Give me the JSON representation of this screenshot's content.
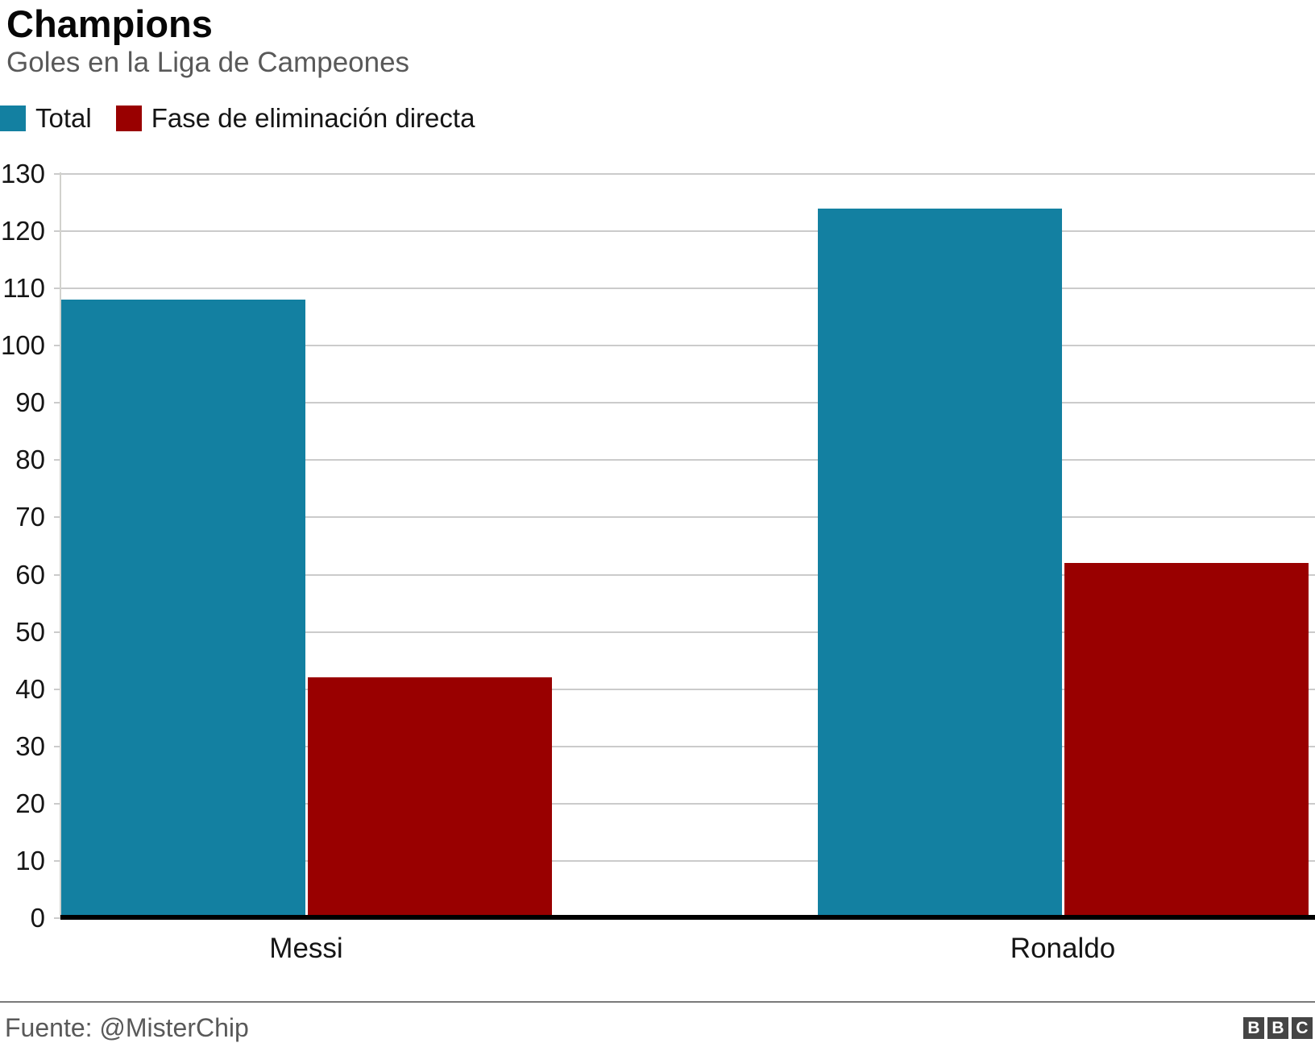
{
  "header": {
    "title": "Champions",
    "subtitle": "Goles en la Liga de Campeones"
  },
  "legend": [
    {
      "label": "Total",
      "color": "#1380A1"
    },
    {
      "label": "Fase de eliminación directa",
      "color": "#990000"
    }
  ],
  "chart_data": {
    "type": "bar",
    "title": "Champions",
    "subtitle": "Goles en la Liga de Campeones",
    "categories": [
      "Messi",
      "Ronaldo"
    ],
    "series": [
      {
        "name": "Total",
        "color": "#1380A1",
        "values": [
          108,
          124
        ]
      },
      {
        "name": "Fase de eliminación directa",
        "color": "#990000",
        "values": [
          42,
          62
        ]
      }
    ],
    "xlabel": "",
    "ylabel": "",
    "ylim": [
      0,
      130
    ],
    "ytick_step": 10,
    "grid": true,
    "gridline_color": "#cbcbcb",
    "axis_color": "#000000",
    "legend_position": "top-left"
  },
  "footer": {
    "source": "Fuente: @MisterChip",
    "logo_letters": [
      "B",
      "B",
      "C"
    ]
  }
}
